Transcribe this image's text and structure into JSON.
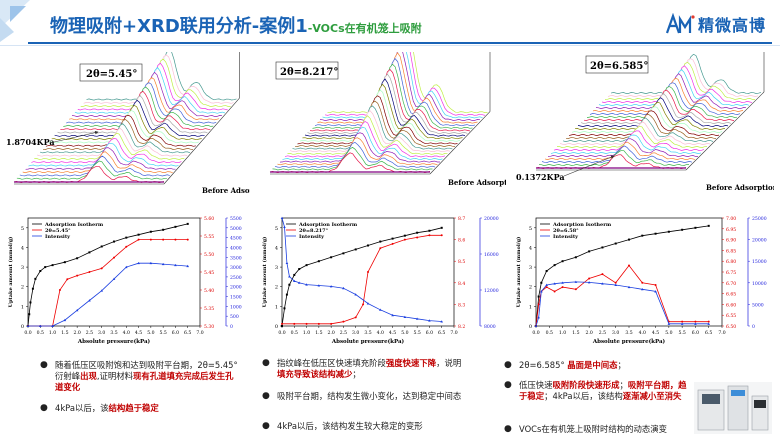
{
  "header": {
    "title": "物理吸附+XRD联用分析-案例1",
    "subtitle": "-VOCs在有机笼上吸附",
    "logo_text": "精微高博"
  },
  "colors": {
    "accent": "#1a63b5",
    "green": "#2e9d3e",
    "red": "#c00000"
  },
  "waterfall": [
    {
      "theta": "2θ=5.45°",
      "pressure_label": "1.8704KPa",
      "before": "Before Adsorption"
    },
    {
      "theta": "2θ=8.217°",
      "before": "Before Adsorption"
    },
    {
      "theta": "2θ=6.585°",
      "pressure_label": "0.1372KPa",
      "before": "Before Adsorption"
    }
  ],
  "charts": [
    {
      "legend": [
        "Adsorption Isotherm",
        "2θ=5.45°",
        "Intensity"
      ],
      "ylabel": "Uptake amount (mmol/g)",
      "xlabel": "Absolute pressure(kPa)",
      "xticks": [
        "0.0",
        "0.5",
        "1.0",
        "1.5",
        "2.0",
        "2.5",
        "3.0",
        "3.5",
        "4.0",
        "4.5",
        "5.0",
        "5.5",
        "6.0",
        "6.5",
        "7.0"
      ],
      "yticks": [
        "0",
        "1",
        "2",
        "3",
        "4",
        "5"
      ],
      "red_ticks": [
        "5.30",
        "5.35",
        "5.40",
        "5.45",
        "5.50",
        "5.55",
        "5.60"
      ],
      "blue_ticks": [
        "0",
        "500",
        "1000",
        "1500",
        "2000",
        "2500",
        "3000",
        "3500",
        "4000",
        "4500",
        "5000",
        "5500"
      ]
    },
    {
      "legend": [
        "Adsorption Isotherm",
        "2θ=8.217°",
        "Intensity"
      ],
      "ylabel": "Uptake amount (mmol/g)",
      "xlabel": "Absolute pressure(kPa)",
      "xticks": [
        "0.0",
        "0.5",
        "1.0",
        "1.5",
        "2.0",
        "2.5",
        "3.0",
        "3.5",
        "4.0",
        "4.5",
        "5.0",
        "5.5",
        "6.0",
        "6.5",
        "7.0"
      ],
      "yticks": [
        "0",
        "1",
        "2",
        "3",
        "4",
        "5"
      ],
      "red_ticks": [
        "8.2",
        "8.3",
        "8.4",
        "8.5",
        "8.6",
        "8.7"
      ],
      "blue_ticks": [
        "8000",
        "12000",
        "16000",
        "20000"
      ]
    },
    {
      "legend": [
        "Adsorption Isotherm",
        "2θ=6.58°",
        "Intensity"
      ],
      "ylabel": "Uptake amount (mmol/g)",
      "xlabel": "Absolute pressure(kPa)",
      "xticks": [
        "0.0",
        "0.5",
        "1.0",
        "1.5",
        "2.0",
        "2.5",
        "3.0",
        "3.5",
        "4.0",
        "4.5",
        "5.0",
        "5.5",
        "6.0",
        "6.5",
        "7.0"
      ],
      "yticks": [
        "0",
        "1",
        "2",
        "3",
        "4",
        "5"
      ],
      "red_ticks": [
        "6.50",
        "6.55",
        "6.60",
        "6.65",
        "6.70",
        "6.75",
        "6.80",
        "6.85",
        "6.90",
        "6.95",
        "7.00"
      ],
      "blue_ticks": [
        "0",
        "5000",
        "10000",
        "15000",
        "20000",
        "25000"
      ]
    }
  ],
  "chart_data": [
    {
      "type": "line",
      "xlabel": "Absolute pressure(kPa)",
      "ylabel": "Uptake amount (mmol/g)",
      "series": [
        {
          "name": "Adsorption Isotherm",
          "axis": "left",
          "x": [
            0,
            0.05,
            0.1,
            0.2,
            0.3,
            0.5,
            0.7,
            1.0,
            1.5,
            2.0,
            2.5,
            3.0,
            3.5,
            4.0,
            4.5,
            5.0,
            5.5,
            6.0,
            6.5
          ],
          "y": [
            0,
            0.6,
            1.2,
            1.9,
            2.4,
            2.8,
            3.0,
            3.1,
            3.25,
            3.45,
            3.75,
            4.05,
            4.3,
            4.5,
            4.65,
            4.8,
            4.9,
            5.05,
            5.2
          ]
        },
        {
          "name": "2θ=5.45°",
          "axis": "red",
          "x": [
            0,
            0.5,
            1.0,
            1.3,
            1.6,
            2.0,
            2.5,
            3.0,
            3.5,
            4.0,
            4.5,
            5.0,
            5.5,
            6.0,
            6.5
          ],
          "y": [
            5.3,
            5.3,
            5.3,
            5.4,
            5.43,
            5.44,
            5.45,
            5.46,
            5.49,
            5.52,
            5.54,
            5.54,
            5.54,
            5.54,
            5.54
          ]
        },
        {
          "name": "Intensity",
          "axis": "blue",
          "x": [
            0,
            0.5,
            1.0,
            1.5,
            2.0,
            2.5,
            3.0,
            3.5,
            4.0,
            4.5,
            5.0,
            5.5,
            6.0,
            6.5
          ],
          "y": [
            0,
            0,
            0,
            300,
            800,
            1300,
            1800,
            2400,
            3000,
            3200,
            3200,
            3150,
            3100,
            3050
          ]
        }
      ]
    },
    {
      "type": "line",
      "xlabel": "Absolute pressure(kPa)",
      "ylabel": "Uptake amount (mmol/g)",
      "series": [
        {
          "name": "Adsorption Isotherm",
          "axis": "left",
          "x": [
            0,
            0.1,
            0.2,
            0.3,
            0.5,
            0.7,
            1.0,
            1.5,
            2.0,
            2.5,
            3.0,
            3.5,
            4.0,
            4.5,
            5.0,
            5.5,
            6.0,
            6.5
          ],
          "y": [
            0,
            0.9,
            1.6,
            2.1,
            2.6,
            2.9,
            3.1,
            3.3,
            3.5,
            3.7,
            3.9,
            4.1,
            4.3,
            4.45,
            4.6,
            4.75,
            4.85,
            5.0
          ]
        },
        {
          "name": "2θ=8.217°",
          "axis": "red",
          "x": [
            0,
            0.5,
            1.0,
            1.5,
            2.0,
            2.5,
            3.0,
            3.3,
            3.5,
            4.0,
            4.5,
            5.0,
            5.5,
            6.0,
            6.5
          ],
          "y": [
            8.21,
            8.21,
            8.21,
            8.21,
            8.21,
            8.22,
            8.24,
            8.3,
            8.45,
            8.56,
            8.58,
            8.6,
            8.61,
            8.62,
            8.62
          ]
        },
        {
          "name": "Intensity",
          "axis": "blue",
          "x": [
            0,
            0.1,
            0.2,
            0.3,
            0.5,
            0.7,
            1.0,
            1.5,
            2.0,
            2.5,
            3.0,
            3.5,
            4.0,
            4.5,
            5.0,
            5.5,
            6.0,
            6.5
          ],
          "y": [
            20000,
            19000,
            15000,
            13500,
            13000,
            12800,
            12600,
            12500,
            12400,
            12200,
            11500,
            10500,
            9800,
            9200,
            9000,
            8800,
            8600,
            8500
          ]
        }
      ]
    },
    {
      "type": "line",
      "xlabel": "Absolute pressure(kPa)",
      "ylabel": "Uptake amount (mmol/g)",
      "series": [
        {
          "name": "Adsorption Isotherm",
          "axis": "left",
          "x": [
            0,
            0.1,
            0.2,
            0.4,
            0.7,
            1.0,
            1.5,
            2.0,
            2.5,
            3.0,
            3.5,
            4.0,
            4.5,
            5.0,
            5.5,
            6.0,
            6.5
          ],
          "y": [
            0,
            1.5,
            2.2,
            2.8,
            3.1,
            3.3,
            3.5,
            3.8,
            4.0,
            4.2,
            4.4,
            4.6,
            4.7,
            4.8,
            4.9,
            5.0,
            5.1
          ]
        },
        {
          "name": "2θ=6.58°",
          "axis": "red",
          "x": [
            0,
            0.1,
            0.2,
            0.4,
            0.7,
            1.0,
            1.5,
            2.0,
            2.5,
            3.0,
            3.5,
            4.0,
            4.5,
            5.0,
            5.5,
            6.0,
            6.5
          ],
          "y": [
            6.5,
            6.6,
            6.66,
            6.68,
            6.66,
            6.68,
            6.67,
            6.72,
            6.74,
            6.7,
            6.78,
            6.7,
            6.69,
            6.52,
            6.52,
            6.52,
            6.52
          ]
        },
        {
          "name": "Intensity",
          "axis": "blue",
          "x": [
            0,
            0.1,
            0.2,
            0.4,
            0.7,
            1.0,
            1.5,
            2.0,
            2.5,
            3.0,
            3.5,
            4.0,
            4.5,
            5.0,
            5.5,
            6.0,
            6.5
          ],
          "y": [
            0,
            2000,
            8000,
            9500,
            9800,
            10000,
            10200,
            10100,
            9800,
            9500,
            9000,
            8500,
            8000,
            500,
            500,
            500,
            500
          ]
        }
      ]
    }
  ],
  "bullets_left": [
    {
      "segs": [
        {
          "t": "随着低压区吸附饱和达到吸附平台期，2θ=5.45°衍射峰"
        },
        {
          "t": "出现",
          "r": 1
        },
        {
          "t": ",证明材料"
        },
        {
          "t": "现有孔道填充完成后发生孔道变化",
          "r": 1
        }
      ]
    },
    {
      "segs": [
        {
          "t": "4kPa以后，该"
        },
        {
          "t": "结构趋于稳定",
          "r": 1
        }
      ]
    }
  ],
  "bullets_mid": [
    {
      "segs": [
        {
          "t": "指纹峰在低压区快速填充阶段"
        },
        {
          "t": "强度快速下降",
          "r": 1
        },
        {
          "t": "，说明"
        },
        {
          "t": "填充导致该结构减少",
          "r": 1
        },
        {
          "t": "；"
        }
      ]
    },
    {
      "segs": [
        {
          "t": "吸附平台期，结构发生微小变化，达到稳定中间态"
        }
      ]
    },
    {
      "segs": [
        {
          "t": "4kPa以后，该结构发生较大稳定的变形"
        }
      ]
    }
  ],
  "bullets_right": [
    {
      "segs": [
        {
          "t": "2θ=6.585° "
        },
        {
          "t": "晶面是中间态",
          "r": 1
        },
        {
          "t": "；"
        }
      ]
    },
    {
      "segs": [
        {
          "t": "低压快速"
        },
        {
          "t": "吸附阶段快速形成",
          "r": 1
        },
        {
          "t": "；"
        },
        {
          "t": "吸附平台期，趋于稳定",
          "r": 1
        },
        {
          "t": "；4kPa以后，该结构"
        },
        {
          "t": "逐渐减小至消失",
          "r": 1
        }
      ]
    },
    {
      "segs": [
        {
          "t": "VOCs在有机笼上吸附时结构的动态演变"
        }
      ]
    }
  ]
}
